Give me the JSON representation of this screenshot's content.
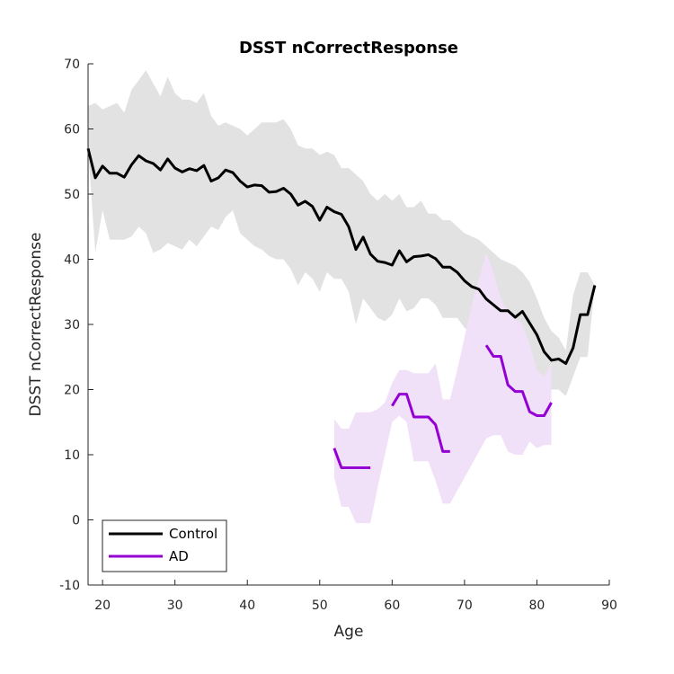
{
  "chart_data": {
    "type": "line",
    "title": "DSST nCorrectResponse",
    "xlabel": "Age",
    "ylabel": "DSST nCorrectResponse",
    "xlim": [
      18,
      90
    ],
    "ylim": [
      -10,
      70
    ],
    "xticks": [
      20,
      30,
      40,
      50,
      60,
      70,
      80,
      90
    ],
    "yticks": [
      -10,
      0,
      10,
      20,
      30,
      40,
      50,
      60,
      70
    ],
    "grid": false,
    "legend_position": "bottom-left",
    "series": [
      {
        "name": "Control",
        "color": "#000000",
        "band_color": "#e2e2e2",
        "segments": [
          {
            "x": [
              18,
              19,
              20,
              21,
              22,
              23,
              24,
              25,
              26,
              27,
              28,
              29,
              30,
              31,
              32,
              33,
              34,
              35,
              36,
              37,
              38,
              39,
              40,
              41,
              42,
              43,
              44,
              45,
              46,
              47,
              48,
              49,
              50,
              51,
              52,
              53,
              54,
              55,
              56,
              57,
              58,
              59,
              60,
              61,
              62,
              63,
              64,
              65,
              66,
              67,
              68,
              69,
              70,
              71,
              72,
              73,
              74,
              75,
              76,
              77,
              78,
              79,
              80,
              81,
              82,
              83,
              84,
              85,
              86,
              87,
              88
            ],
            "y": [
              57,
              52.5,
              54.3,
              53.2,
              53.2,
              52.6,
              54.5,
              55.9,
              55.1,
              54.7,
              53.7,
              55.4,
              54,
              53.4,
              53.9,
              53.6,
              54.4,
              52,
              52.5,
              53.7,
              53.3,
              52,
              51.1,
              51.4,
              51.3,
              50.3,
              50.4,
              50.9,
              50,
              48.3,
              48.9,
              48.1,
              46,
              48,
              47.3,
              46.9,
              45,
              41.5,
              43.4,
              40.8,
              39.7,
              39.5,
              39.1,
              41.3,
              39.6,
              40.4,
              40.5,
              40.7,
              40.1,
              38.8,
              38.8,
              38,
              36.7,
              35.8,
              35.4,
              33.9,
              33,
              32.1,
              32.1,
              31.1,
              32,
              30.2,
              28.4,
              25.8,
              24.5,
              24.7,
              24,
              26.4,
              31.5,
              31.5,
              36
            ]
          }
        ],
        "band_upper": [
          63.5,
          64,
          63,
          63.5,
          64,
          62.5,
          66,
          67.5,
          69,
          67,
          65,
          68,
          65.5,
          64.5,
          64.5,
          64,
          65.5,
          62,
          60.5,
          61,
          60.5,
          60,
          59,
          60,
          61,
          61,
          61,
          61.5,
          60,
          57.5,
          57,
          57,
          56,
          56.5,
          56,
          54,
          54,
          53,
          52,
          50,
          49,
          50,
          49,
          50,
          48,
          48,
          49,
          47,
          47,
          46,
          46,
          45,
          44,
          43.5,
          43,
          42,
          41,
          40,
          39.5,
          39,
          38,
          36.5,
          34,
          31,
          29,
          28,
          26,
          34.5,
          38,
          38,
          36
        ],
        "band_lower": [
          57,
          41,
          47.5,
          43,
          43,
          43,
          43.5,
          45,
          44,
          41,
          41.5,
          42.5,
          42,
          41.5,
          43,
          42,
          43.5,
          45,
          44.5,
          46.5,
          47.5,
          44,
          43,
          42,
          41.5,
          40.5,
          40,
          40,
          38.5,
          36,
          38,
          37,
          35,
          38,
          37,
          37,
          35,
          30,
          34,
          32.5,
          31,
          30.5,
          31.5,
          34,
          32,
          32.5,
          34,
          34,
          33,
          31,
          31,
          31,
          29.5,
          28.5,
          28,
          27,
          26.5,
          25.5,
          24,
          22.5,
          23,
          21.5,
          20,
          19.5,
          20,
          20,
          19,
          22,
          25,
          25,
          36
        ]
      },
      {
        "name": "AD",
        "color": "#9400d3",
        "band_color": "#f0e0f8",
        "segments": [
          {
            "x": [
              52,
              53,
              54,
              55,
              56,
              57
            ],
            "y": [
              11,
              8,
              8,
              8,
              8,
              8
            ]
          },
          {
            "x": [
              60,
              61,
              62,
              63,
              64,
              65,
              66,
              67,
              68
            ],
            "y": [
              17.5,
              19.3,
              19.3,
              15.8,
              15.8,
              15.8,
              14.6,
              10.5,
              10.5
            ]
          },
          {
            "x": [
              73,
              74,
              75,
              76,
              77,
              78,
              79,
              80,
              81,
              82
            ],
            "y": [
              26.8,
              25.1,
              25.1,
              20.7,
              19.7,
              19.7,
              16.6,
              16,
              16,
              18
            ]
          }
        ],
        "band": {
          "x": [
            52,
            53,
            54,
            55,
            56,
            57,
            58,
            59,
            60,
            61,
            62,
            63,
            64,
            65,
            66,
            67,
            68,
            69,
            70,
            71,
            72,
            73,
            74,
            75,
            76,
            77,
            78,
            79,
            80,
            81,
            82
          ],
          "upper": [
            15.5,
            14,
            14,
            16.5,
            16.5,
            16.5,
            17,
            18,
            21,
            23,
            23,
            22.5,
            22.5,
            22.5,
            24,
            18.5,
            18.5,
            23,
            28,
            33,
            37,
            41,
            38,
            34,
            32,
            31,
            30,
            27,
            23,
            22,
            24
          ],
          "lower": [
            6.5,
            2,
            2,
            -0.5,
            -0.5,
            -0.5,
            5,
            10,
            15,
            16,
            15,
            9,
            9,
            9,
            6,
            2.5,
            2.5,
            4.5,
            6.5,
            8.5,
            10.5,
            12.5,
            13,
            13,
            10.5,
            10,
            10,
            12,
            11,
            11.5,
            11.5
          ]
        }
      }
    ]
  }
}
